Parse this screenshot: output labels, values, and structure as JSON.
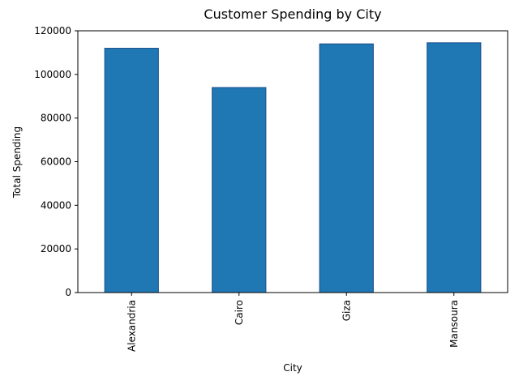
{
  "chart_data": {
    "type": "bar",
    "title": "Customer Spending by City",
    "x_label": "City",
    "y_label": "Total Spending",
    "categories": [
      "Alexandria",
      "Cairo",
      "Giza",
      "Mansoura"
    ],
    "values": [
      112000,
      94000,
      114000,
      114500
    ],
    "color": "#1f77b4",
    "edge_color": "#1a4f8a",
    "ylim": [
      0,
      120000
    ],
    "yticks": [
      0,
      20000,
      40000,
      60000,
      80000,
      100000,
      120000
    ],
    "grid": false
  }
}
